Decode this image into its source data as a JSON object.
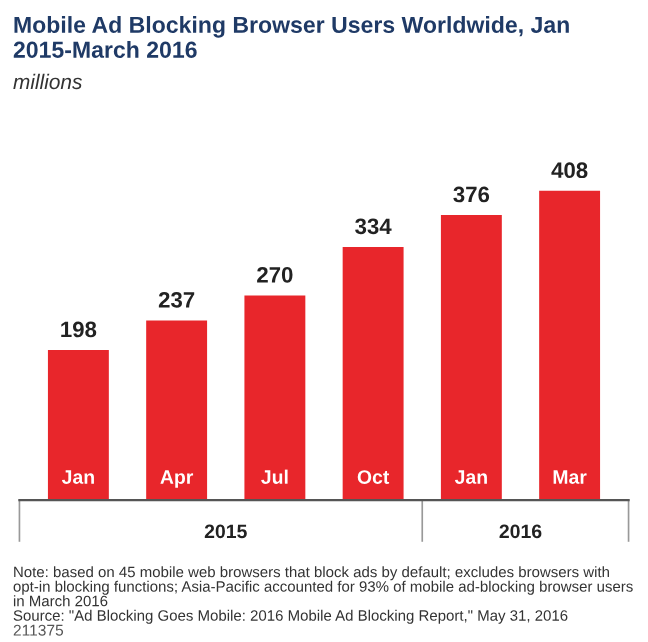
{
  "chart_data": {
    "type": "bar",
    "title": "Mobile Ad Blocking Browser Users Worldwide, Jan 2015-March 2016",
    "subtitle": "millions",
    "categories": [
      "Jan",
      "Apr",
      "Jul",
      "Oct",
      "Jan",
      "Mar"
    ],
    "values": [
      198,
      237,
      270,
      334,
      376,
      408
    ],
    "color": "#e8262b",
    "data_labels": true,
    "annotations": [
      "2015",
      "2016",
      "Note: based on 45 mobile web browsers that block ads by default; excludes browsers with opt-in blocking functions; Asia-Pacific accounted for 93% of mobile ad-blocking browser users in March 2016",
      "Source: \"Ad Blocking Goes Mobile: 2016 Mobile Ad Blocking Report,\" May 31, 2016",
      "211375"
    ]
  }
}
